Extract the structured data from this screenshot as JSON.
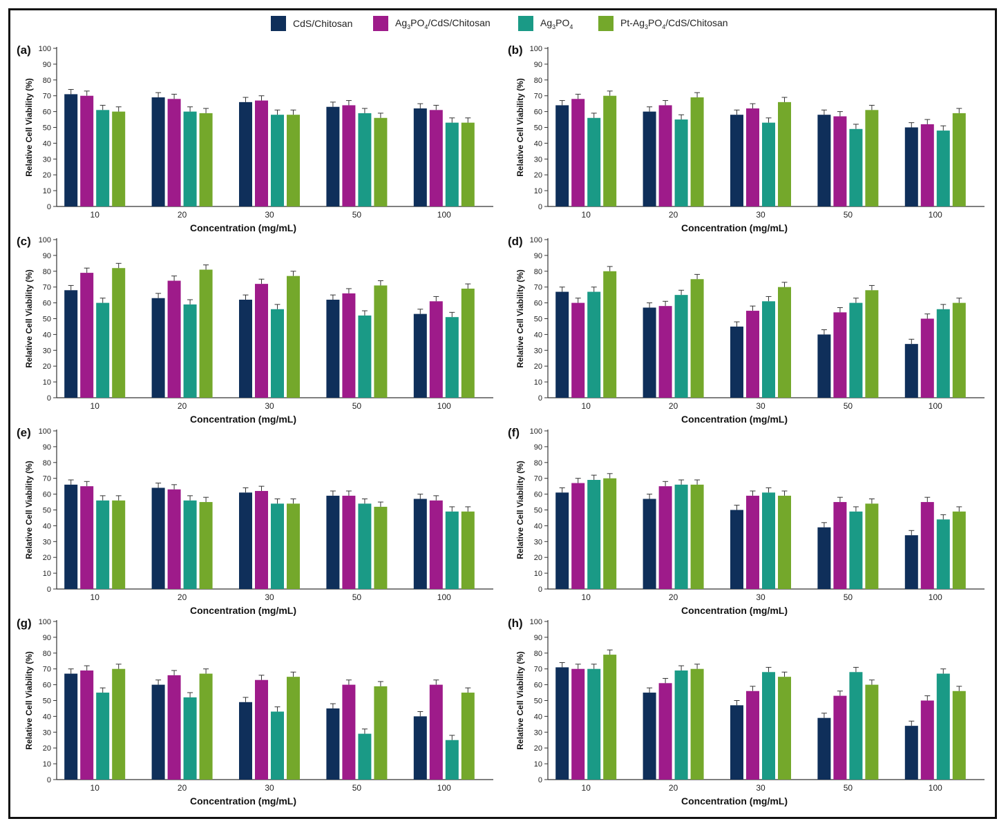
{
  "legend": {
    "items": [
      {
        "label": "CdS/Chitosan",
        "color": "#0f2f5a"
      },
      {
        "label": "Ag3PO4/CdS/Chitosan",
        "color": "#9e1b8a"
      },
      {
        "label": "Ag3PO4",
        "color": "#1a9a86"
      },
      {
        "label": "Pt-Ag3PO4/CdS/Chitosan",
        "color": "#74a82b"
      }
    ]
  },
  "chart_data": [
    {
      "type": "bar",
      "panel_label": "(a)",
      "xlabel": "Concentration (mg/mL)",
      "ylabel": "Relative Cell Viability (%)",
      "ylim": [
        0,
        100
      ],
      "yticks": [
        "0",
        "10",
        "20",
        "30",
        "40",
        "50",
        "60",
        "70",
        "80",
        "90",
        "100"
      ],
      "categories": [
        "10",
        "20",
        "30",
        "50",
        "100"
      ],
      "series": [
        {
          "name": "CdS/Chitosan",
          "values": [
            71,
            69,
            66,
            63,
            62
          ]
        },
        {
          "name": "Ag3PO4/CdS/Chitosan",
          "values": [
            70,
            68,
            67,
            64,
            61
          ]
        },
        {
          "name": "Ag3PO4",
          "values": [
            61,
            60,
            58,
            59,
            53
          ]
        },
        {
          "name": "Pt-Ag3PO4/CdS/Chitosan",
          "values": [
            60,
            59,
            58,
            56,
            53
          ]
        }
      ]
    },
    {
      "type": "bar",
      "panel_label": "(b)",
      "xlabel": "Concentration (mg/mL)",
      "ylabel": "Relative Cell Viability (%)",
      "ylim": [
        0,
        100
      ],
      "yticks": [
        "0",
        "10",
        "20",
        "30",
        "40",
        "50",
        "60",
        "70",
        "80",
        "90",
        "100"
      ],
      "categories": [
        "10",
        "20",
        "30",
        "50",
        "100"
      ],
      "series": [
        {
          "name": "CdS/Chitosan",
          "values": [
            64,
            60,
            58,
            58,
            50
          ]
        },
        {
          "name": "Ag3PO4/CdS/Chitosan",
          "values": [
            68,
            64,
            62,
            57,
            52
          ]
        },
        {
          "name": "Ag3PO4",
          "values": [
            56,
            55,
            53,
            49,
            48
          ]
        },
        {
          "name": "Pt-Ag3PO4/CdS/Chitosan",
          "values": [
            70,
            69,
            66,
            61,
            59
          ]
        }
      ]
    },
    {
      "type": "bar",
      "panel_label": "(c)",
      "xlabel": "Concentration (mg/mL)",
      "ylabel": "Relative Cell Viability (%)",
      "ylim": [
        0,
        100
      ],
      "yticks": [
        "0",
        "10",
        "20",
        "30",
        "40",
        "50",
        "60",
        "70",
        "80",
        "90",
        "100"
      ],
      "categories": [
        "10",
        "20",
        "30",
        "50",
        "100"
      ],
      "series": [
        {
          "name": "CdS/Chitosan",
          "values": [
            68,
            63,
            62,
            62,
            53
          ]
        },
        {
          "name": "Ag3PO4/CdS/Chitosan",
          "values": [
            79,
            74,
            72,
            66,
            61
          ]
        },
        {
          "name": "Ag3PO4",
          "values": [
            60,
            59,
            56,
            52,
            51
          ]
        },
        {
          "name": "Pt-Ag3PO4/CdS/Chitosan",
          "values": [
            82,
            81,
            77,
            71,
            69
          ]
        }
      ]
    },
    {
      "type": "bar",
      "panel_label": "(d)",
      "xlabel": "Concentration (mg/mL)",
      "ylabel": "Relative Cell Viability (%)",
      "ylim": [
        0,
        100
      ],
      "yticks": [
        "0",
        "10",
        "20",
        "30",
        "40",
        "50",
        "60",
        "70",
        "80",
        "90",
        "100"
      ],
      "categories": [
        "10",
        "20",
        "30",
        "50",
        "100"
      ],
      "series": [
        {
          "name": "CdS/Chitosan",
          "values": [
            67,
            57,
            45,
            40,
            34
          ]
        },
        {
          "name": "Ag3PO4/CdS/Chitosan",
          "values": [
            60,
            58,
            55,
            54,
            50
          ]
        },
        {
          "name": "Ag3PO4",
          "values": [
            67,
            65,
            61,
            60,
            56
          ]
        },
        {
          "name": "Pt-Ag3PO4/CdS/Chitosan",
          "values": [
            80,
            75,
            70,
            68,
            60
          ]
        }
      ]
    },
    {
      "type": "bar",
      "panel_label": "(e)",
      "xlabel": "Concentration (mg/mL)",
      "ylabel": "Relative Cell Viability (%)",
      "ylim": [
        0,
        100
      ],
      "yticks": [
        "0",
        "10",
        "20",
        "30",
        "40",
        "50",
        "60",
        "70",
        "80",
        "90",
        "100"
      ],
      "categories": [
        "10",
        "20",
        "30",
        "50",
        "100"
      ],
      "series": [
        {
          "name": "CdS/Chitosan",
          "values": [
            66,
            64,
            61,
            59,
            57
          ]
        },
        {
          "name": "Ag3PO4/CdS/Chitosan",
          "values": [
            65,
            63,
            62,
            59,
            56
          ]
        },
        {
          "name": "Ag3PO4",
          "values": [
            56,
            56,
            54,
            54,
            49
          ]
        },
        {
          "name": "Pt-Ag3PO4/CdS/Chitosan",
          "values": [
            56,
            55,
            54,
            52,
            49
          ]
        }
      ]
    },
    {
      "type": "bar",
      "panel_label": "(f)",
      "xlabel": "Concentration (mg/mL)",
      "ylabel": "Relative Cell Viability (%)",
      "ylim": [
        0,
        100
      ],
      "yticks": [
        "0",
        "10",
        "20",
        "30",
        "40",
        "50",
        "60",
        "70",
        "80",
        "90",
        "100"
      ],
      "categories": [
        "10",
        "20",
        "30",
        "50",
        "100"
      ],
      "series": [
        {
          "name": "CdS/Chitosan",
          "values": [
            61,
            57,
            50,
            39,
            34
          ]
        },
        {
          "name": "Ag3PO4/CdS/Chitosan",
          "values": [
            67,
            65,
            59,
            55,
            55
          ]
        },
        {
          "name": "Ag3PO4",
          "values": [
            69,
            66,
            61,
            49,
            44
          ]
        },
        {
          "name": "Pt-Ag3PO4/CdS/Chitosan",
          "values": [
            70,
            66,
            59,
            54,
            49
          ]
        }
      ]
    },
    {
      "type": "bar",
      "panel_label": "(g)",
      "xlabel": "Concentration (mg/mL)",
      "ylabel": "Relative Cell Viability (%)",
      "ylim": [
        0,
        100
      ],
      "yticks": [
        "0",
        "10",
        "20",
        "30",
        "40",
        "50",
        "60",
        "70",
        "80",
        "90",
        "100"
      ],
      "categories": [
        "10",
        "20",
        "30",
        "50",
        "100"
      ],
      "series": [
        {
          "name": "CdS/Chitosan",
          "values": [
            67,
            60,
            49,
            45,
            40
          ]
        },
        {
          "name": "Ag3PO4/CdS/Chitosan",
          "values": [
            69,
            66,
            63,
            60,
            60
          ]
        },
        {
          "name": "Ag3PO4",
          "values": [
            55,
            52,
            43,
            29,
            25
          ]
        },
        {
          "name": "Pt-Ag3PO4/CdS/Chitosan",
          "values": [
            70,
            67,
            65,
            59,
            55
          ]
        }
      ]
    },
    {
      "type": "bar",
      "panel_label": "(h)",
      "xlabel": "Concentration (mg/mL)",
      "ylabel": "Relative Cell Viability (%)",
      "ylim": [
        0,
        100
      ],
      "yticks": [
        "0",
        "10",
        "20",
        "30",
        "40",
        "50",
        "60",
        "70",
        "80",
        "90",
        "100"
      ],
      "categories": [
        "10",
        "20",
        "30",
        "50",
        "100"
      ],
      "series": [
        {
          "name": "CdS/Chitosan",
          "values": [
            71,
            55,
            47,
            39,
            34
          ]
        },
        {
          "name": "Ag3PO4/CdS/Chitosan",
          "values": [
            70,
            61,
            56,
            53,
            50
          ]
        },
        {
          "name": "Ag3PO4",
          "values": [
            70,
            69,
            68,
            68,
            67
          ]
        },
        {
          "name": "Pt-Ag3PO4/CdS/Chitosan",
          "values": [
            79,
            70,
            65,
            60,
            56
          ]
        }
      ]
    }
  ]
}
